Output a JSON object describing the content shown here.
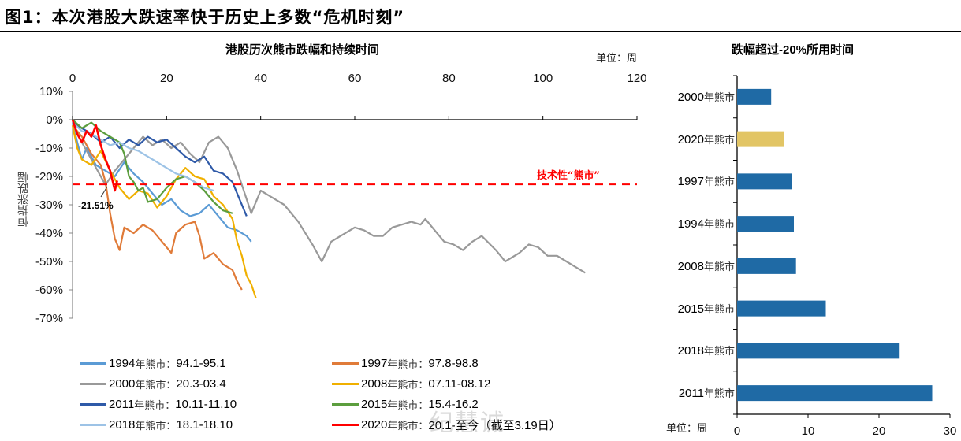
{
  "figure": {
    "label": "图1：",
    "title": "本次港股大跌速率快于历史上多数“危机时刻”"
  },
  "watermark": "纪慧诚",
  "chart_data": [
    {
      "type": "line",
      "title": "港股历次熊市跌幅和持续时间",
      "unit_label": "单位：周",
      "xlabel": "周",
      "ylabel": "恒指涨跌幅",
      "xlim": [
        0,
        120
      ],
      "x_ticks": [
        "0",
        "20",
        "40",
        "60",
        "80",
        "100",
        "120"
      ],
      "ylim": [
        -70,
        10
      ],
      "y_ticks": [
        "10%",
        "0%",
        "-10%",
        "-20%",
        "-30%",
        "-40%",
        "-50%",
        "-60%",
        "-70%"
      ],
      "x_axis_position": "top",
      "reference_line": {
        "label": "技术性“熊市”",
        "value": -22.8,
        "color": "#ff0000",
        "style": "dashed"
      },
      "annotation": {
        "text": "-21.51%",
        "x": 7,
        "y": -21.51
      },
      "series": [
        {
          "name": "1994年熊市",
          "period": "94.1-95.1",
          "color": "#5b9bd5",
          "points": [
            [
              0,
              -1
            ],
            [
              1,
              -8
            ],
            [
              2,
              -14
            ],
            [
              3,
              -10
            ],
            [
              5,
              -16
            ],
            [
              7,
              -18
            ],
            [
              9,
              -20
            ],
            [
              11,
              -15
            ],
            [
              13,
              -19
            ],
            [
              15,
              -22
            ],
            [
              17,
              -26
            ],
            [
              19,
              -30
            ],
            [
              21,
              -28
            ],
            [
              23,
              -32
            ],
            [
              25,
              -34
            ],
            [
              27,
              -33
            ],
            [
              29,
              -30
            ],
            [
              31,
              -34
            ],
            [
              33,
              -38
            ],
            [
              35,
              -39
            ],
            [
              37,
              -41
            ],
            [
              38,
              -43
            ]
          ]
        },
        {
          "name": "1997年熊市",
          "period": "97.8-98.8",
          "color": "#e07b39",
          "points": [
            [
              0,
              -2
            ],
            [
              2,
              -6
            ],
            [
              4,
              -12
            ],
            [
              6,
              -16
            ],
            [
              7,
              -22
            ],
            [
              8,
              -33
            ],
            [
              9,
              -42
            ],
            [
              10,
              -46
            ],
            [
              11,
              -38
            ],
            [
              13,
              -40
            ],
            [
              15,
              -37
            ],
            [
              17,
              -39
            ],
            [
              19,
              -43
            ],
            [
              21,
              -47
            ],
            [
              22,
              -40
            ],
            [
              24,
              -37
            ],
            [
              26,
              -36
            ],
            [
              27,
              -41
            ],
            [
              28,
              -49
            ],
            [
              30,
              -47
            ],
            [
              32,
              -51
            ],
            [
              34,
              -53
            ],
            [
              35,
              -57
            ],
            [
              36,
              -60
            ]
          ]
        },
        {
          "name": "2000年熊市",
          "period": "20.3-03.4",
          "color": "#999999",
          "points": [
            [
              0,
              -2
            ],
            [
              2,
              -8
            ],
            [
              4,
              -14
            ],
            [
              6,
              -20
            ],
            [
              7,
              -23
            ],
            [
              9,
              -18
            ],
            [
              11,
              -14
            ],
            [
              13,
              -10
            ],
            [
              15,
              -6
            ],
            [
              17,
              -9
            ],
            [
              19,
              -7
            ],
            [
              21,
              -10
            ],
            [
              23,
              -8
            ],
            [
              25,
              -12
            ],
            [
              27,
              -15
            ],
            [
              29,
              -8
            ],
            [
              31,
              -6
            ],
            [
              33,
              -10
            ],
            [
              35,
              -18
            ],
            [
              37,
              -28
            ],
            [
              38,
              -33
            ],
            [
              40,
              -25
            ],
            [
              42,
              -27
            ],
            [
              45,
              -30
            ],
            [
              48,
              -36
            ],
            [
              51,
              -44
            ],
            [
              53,
              -50
            ],
            [
              55,
              -43
            ],
            [
              57,
              -41
            ],
            [
              60,
              -38
            ],
            [
              62,
              -39
            ],
            [
              64,
              -41
            ],
            [
              66,
              -41
            ],
            [
              68,
              -38
            ],
            [
              70,
              -37
            ],
            [
              72,
              -36
            ],
            [
              74,
              -37
            ],
            [
              75,
              -35
            ],
            [
              77,
              -39
            ],
            [
              79,
              -43
            ],
            [
              81,
              -44
            ],
            [
              83,
              -46
            ],
            [
              85,
              -43
            ],
            [
              87,
              -41
            ],
            [
              90,
              -46
            ],
            [
              92,
              -50
            ],
            [
              95,
              -47
            ],
            [
              97,
              -44
            ],
            [
              99,
              -45
            ],
            [
              101,
              -48
            ],
            [
              103,
              -48
            ],
            [
              105,
              -50
            ],
            [
              107,
              -52
            ],
            [
              109,
              -54
            ]
          ]
        },
        {
          "name": "2008年熊市",
          "period": "07.11-08.12",
          "color": "#f0b000",
          "points": [
            [
              0,
              -2
            ],
            [
              1,
              -10
            ],
            [
              2,
              -14
            ],
            [
              4,
              -16
            ],
            [
              6,
              -11
            ],
            [
              8,
              -18
            ],
            [
              10,
              -24
            ],
            [
              12,
              -28
            ],
            [
              14,
              -25
            ],
            [
              16,
              -26
            ],
            [
              18,
              -31
            ],
            [
              20,
              -27
            ],
            [
              22,
              -21
            ],
            [
              24,
              -17
            ],
            [
              26,
              -20
            ],
            [
              28,
              -21
            ],
            [
              30,
              -27
            ],
            [
              32,
              -30
            ],
            [
              34,
              -35
            ],
            [
              35,
              -43
            ],
            [
              36,
              -48
            ],
            [
              37,
              -55
            ],
            [
              38,
              -58
            ],
            [
              39,
              -63
            ]
          ]
        },
        {
          "name": "2011年熊市",
          "period": "10.11-11.10",
          "color": "#2f5aa8",
          "points": [
            [
              0,
              -1
            ],
            [
              2,
              -3
            ],
            [
              4,
              -5
            ],
            [
              6,
              -8
            ],
            [
              8,
              -6
            ],
            [
              10,
              -10
            ],
            [
              12,
              -7
            ],
            [
              14,
              -9
            ],
            [
              16,
              -6
            ],
            [
              18,
              -8
            ],
            [
              20,
              -7
            ],
            [
              22,
              -10
            ],
            [
              24,
              -13
            ],
            [
              26,
              -15
            ],
            [
              28,
              -13
            ],
            [
              30,
              -18
            ],
            [
              32,
              -19
            ],
            [
              34,
              -22
            ],
            [
              35,
              -26
            ],
            [
              36,
              -30
            ],
            [
              37,
              -34
            ]
          ]
        },
        {
          "name": "2015年熊市",
          "period": "15.4-16.2",
          "color": "#5c9e3e",
          "points": [
            [
              0,
              0
            ],
            [
              2,
              -3
            ],
            [
              4,
              -1
            ],
            [
              6,
              -4
            ],
            [
              8,
              -6
            ],
            [
              10,
              -8
            ],
            [
              11,
              -12
            ],
            [
              12,
              -20
            ],
            [
              13,
              -22
            ],
            [
              14,
              -25
            ],
            [
              15,
              -24
            ],
            [
              16,
              -29
            ],
            [
              18,
              -28
            ],
            [
              20,
              -24
            ],
            [
              22,
              -21
            ],
            [
              24,
              -20
            ],
            [
              26,
              -22
            ],
            [
              28,
              -25
            ],
            [
              30,
              -29
            ],
            [
              32,
              -32
            ],
            [
              34,
              -33
            ]
          ]
        },
        {
          "name": "2018年熊市",
          "period": "18.1-18.10",
          "color": "#9dc3e6",
          "points": [
            [
              0,
              -1
            ],
            [
              2,
              -4
            ],
            [
              4,
              -5
            ],
            [
              6,
              -7
            ],
            [
              8,
              -9
            ],
            [
              10,
              -8
            ],
            [
              12,
              -10
            ],
            [
              14,
              -11
            ],
            [
              16,
              -13
            ],
            [
              18,
              -15
            ],
            [
              20,
              -17
            ],
            [
              22,
              -19
            ],
            [
              24,
              -20
            ],
            [
              26,
              -22
            ],
            [
              28,
              -24
            ],
            [
              30,
              -25
            ]
          ]
        },
        {
          "name": "2020年熊市",
          "period": "20.1-至今（截至3.19日）",
          "color": "#ff0000",
          "points": [
            [
              0,
              0
            ],
            [
              1,
              -5
            ],
            [
              2,
              -8
            ],
            [
              3,
              -4
            ],
            [
              4,
              -6
            ],
            [
              5,
              -2
            ],
            [
              6,
              -9
            ],
            [
              7,
              -14
            ],
            [
              8,
              -18
            ],
            [
              9,
              -25
            ],
            [
              9.5,
              -21.5
            ]
          ]
        }
      ]
    },
    {
      "type": "bar",
      "orientation": "horizontal",
      "title": "跌幅超过-20%所用时间",
      "unit_label": "单位：周",
      "xlim": [
        0,
        30
      ],
      "x_ticks": [
        "0",
        "10",
        "20",
        "30"
      ],
      "categories": [
        "2000年熊市",
        "2020年熊市",
        "1997年熊市",
        "1994年熊市",
        "2008年熊市",
        "2015年熊市",
        "2018年熊市",
        "2011年熊市"
      ],
      "values": [
        4.8,
        6.6,
        7.7,
        8.0,
        8.3,
        12.5,
        22.8,
        27.5
      ],
      "colors": [
        "#1f6aa5",
        "#e2c565",
        "#1f6aa5",
        "#1f6aa5",
        "#1f6aa5",
        "#1f6aa5",
        "#1f6aa5",
        "#1f6aa5"
      ]
    }
  ],
  "left_chart": {
    "title": "港股历次熊市跌幅和持续时间",
    "unit": "单位：周",
    "ylabel": "恒指涨跌幅",
    "ref_label": "技术性“熊市”",
    "annotation": "-21.51%",
    "legend": [
      {
        "year": "1994",
        "suffix": "年熊市：",
        "period": "94.1-95.1"
      },
      {
        "year": "1997",
        "suffix": "年熊市：",
        "period": "97.8-98.8"
      },
      {
        "year": "2000",
        "suffix": "年熊市：",
        "period": "20.3-03.4"
      },
      {
        "year": "2008",
        "suffix": "年熊市：",
        "period": "07.11-08.12"
      },
      {
        "year": "2011",
        "suffix": "年熊市：",
        "period": "10.11-11.10"
      },
      {
        "year": "2015",
        "suffix": "年熊市：",
        "period": "15.4-16.2"
      },
      {
        "year": "2018",
        "suffix": "年熊市：",
        "period": "18.1-18.10"
      },
      {
        "year": "2020",
        "suffix": "年熊市：",
        "period": "20.1-至今（截至3.19日）"
      }
    ]
  },
  "right_chart": {
    "title_pre": "跌幅超过",
    "title_num": "-20%",
    "title_post": "所用时间",
    "unit": "单位：周",
    "cats": [
      {
        "year": "2000",
        "suffix": "年熊市"
      },
      {
        "year": "2020",
        "suffix": "年熊市"
      },
      {
        "year": "1997",
        "suffix": "年熊市"
      },
      {
        "year": "1994",
        "suffix": "年熊市"
      },
      {
        "year": "2008",
        "suffix": "年熊市"
      },
      {
        "year": "2015",
        "suffix": "年熊市"
      },
      {
        "year": "2018",
        "suffix": "年熊市"
      },
      {
        "year": "2011",
        "suffix": "年熊市"
      }
    ]
  }
}
